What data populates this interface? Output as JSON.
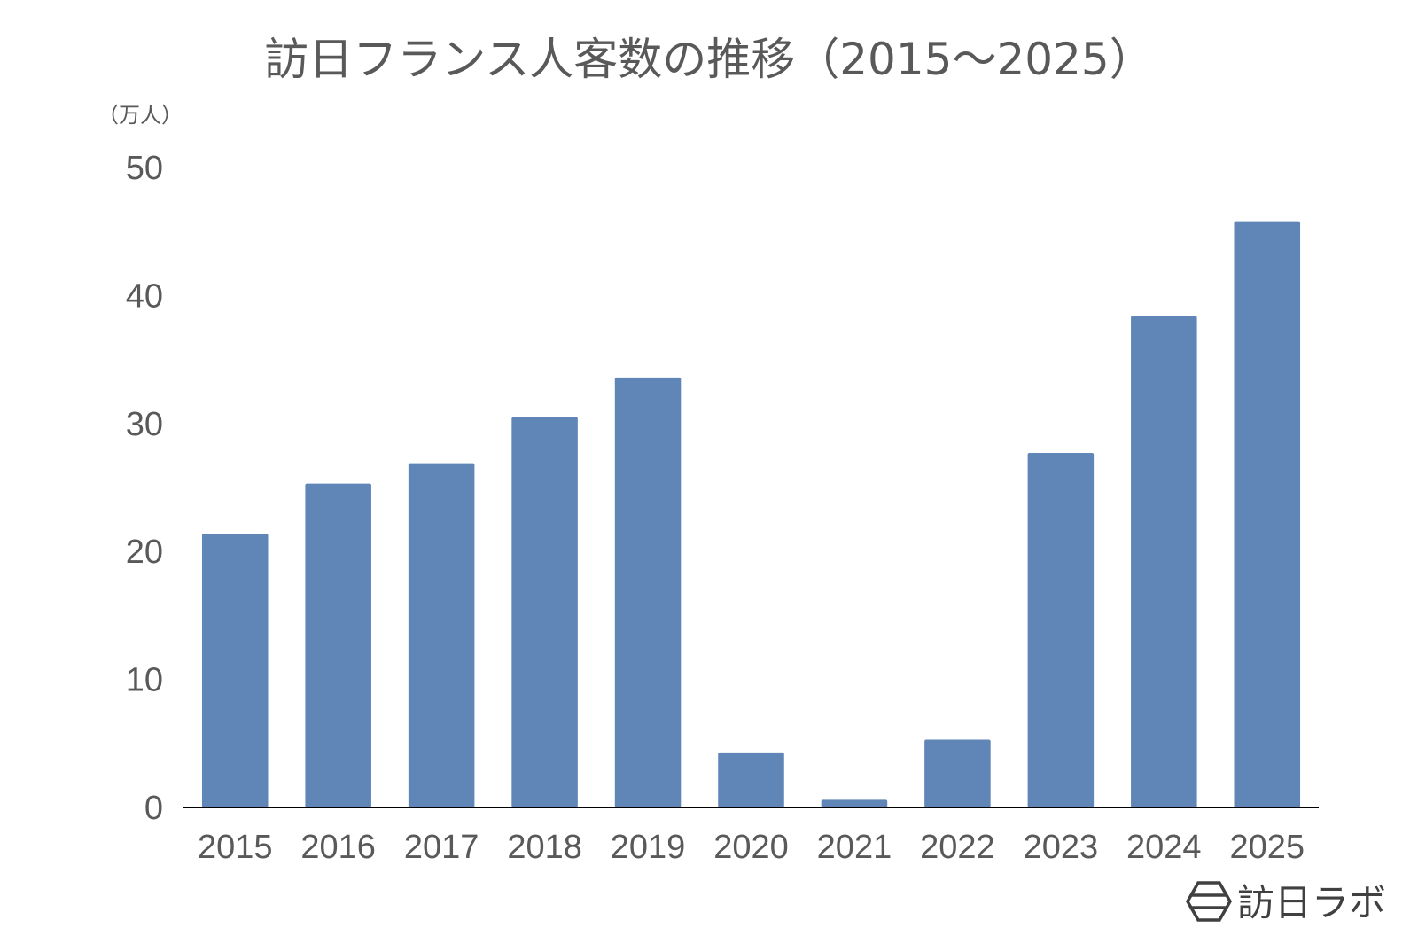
{
  "chart_data": {
    "type": "bar",
    "title": "訪日フランス人客数の推移（2015〜2025）",
    "unit_label": "（万人）",
    "xlabel": "",
    "ylabel": "",
    "categories": [
      "2015",
      "2016",
      "2017",
      "2018",
      "2019",
      "2020",
      "2021",
      "2022",
      "2023",
      "2024",
      "2025"
    ],
    "series": [
      {
        "values": [
          21.4,
          25.3,
          26.9,
          30.5,
          33.6,
          4.3,
          0.6,
          5.3,
          27.7,
          38.4,
          45.8
        ],
        "color": "#5f86b7"
      }
    ],
    "ylim": [
      0,
      50
    ],
    "yticks": [
      0,
      10,
      20,
      30,
      40,
      50
    ],
    "grid": false,
    "legend": "none"
  },
  "branding": {
    "logo_text": "訪日ラボ",
    "logo_icon": "hexagon-stripes-icon"
  }
}
